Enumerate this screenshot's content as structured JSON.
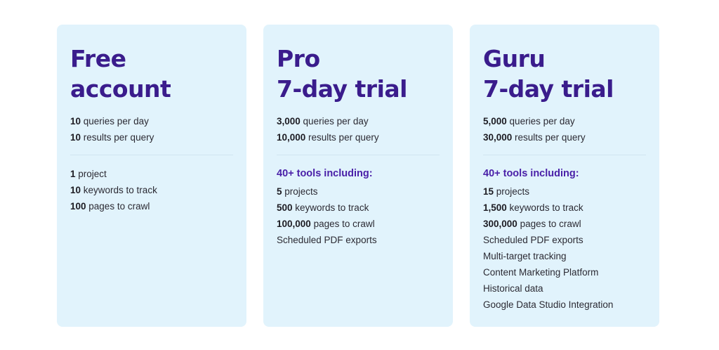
{
  "plans": [
    {
      "title_line1": "Free",
      "title_line2": "account",
      "quota": [
        {
          "value": "10",
          "label": " queries per day"
        },
        {
          "value": "10",
          "label": " results per query"
        }
      ],
      "tools_heading": "",
      "features": [
        {
          "value": "1",
          "label": " project"
        },
        {
          "value": "10",
          "label": " keywords to track"
        },
        {
          "value": "100",
          "label": " pages to crawl"
        }
      ]
    },
    {
      "title_line1": "Pro",
      "title_line2": "7-day trial",
      "quota": [
        {
          "value": "3,000",
          "label": " queries per day"
        },
        {
          "value": "10,000",
          "label": " results per query"
        }
      ],
      "tools_heading": "40+ tools including:",
      "features": [
        {
          "value": "5",
          "label": " projects"
        },
        {
          "value": "500",
          "label": " keywords to track"
        },
        {
          "value": "100,000",
          "label": " pages to crawl"
        },
        {
          "value": "",
          "label": "Scheduled PDF exports"
        }
      ]
    },
    {
      "title_line1": "Guru",
      "title_line2": "7-day trial",
      "quota": [
        {
          "value": "5,000",
          "label": " queries per day"
        },
        {
          "value": "30,000",
          "label": " results per query"
        }
      ],
      "tools_heading": "40+ tools including:",
      "features": [
        {
          "value": "15",
          "label": " projects"
        },
        {
          "value": "1,500",
          "label": " keywords to track"
        },
        {
          "value": "300,000",
          "label": " pages to crawl"
        },
        {
          "value": "",
          "label": "Scheduled PDF exports"
        },
        {
          "value": "",
          "label": "Multi-target tracking"
        },
        {
          "value": "",
          "label": "Content Marketing Platform"
        },
        {
          "value": "",
          "label": "Historical data"
        },
        {
          "value": "",
          "label": "Google Data Studio Integration"
        }
      ]
    }
  ]
}
